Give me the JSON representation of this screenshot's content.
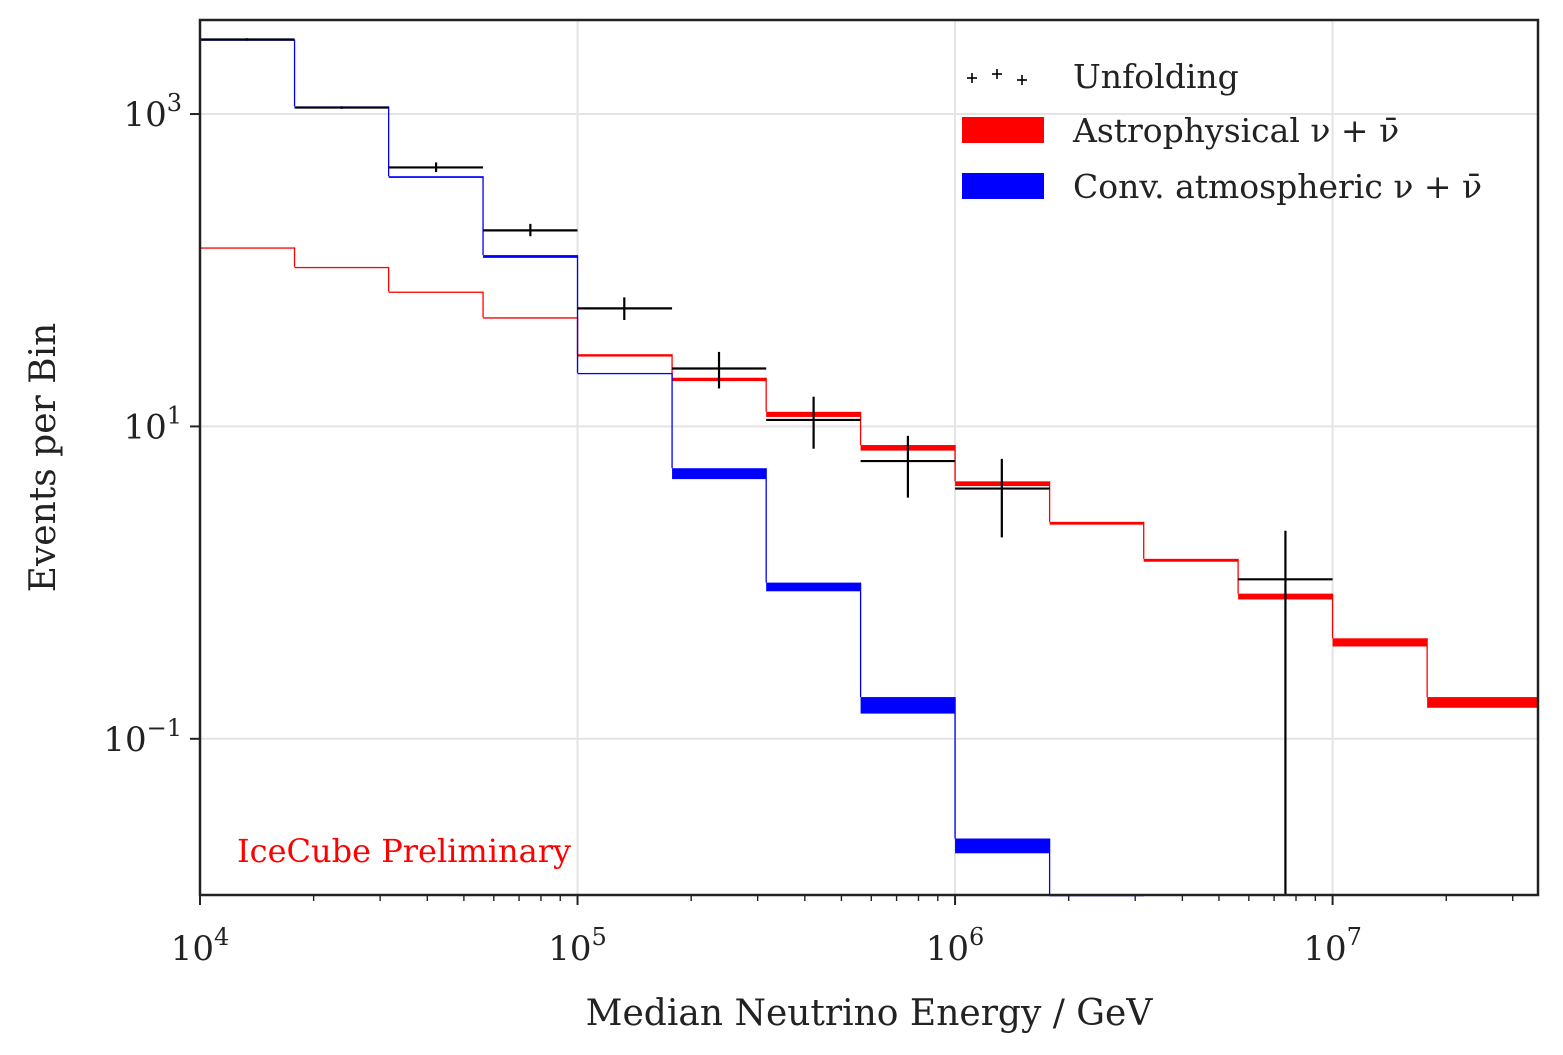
{
  "chart_data": {
    "type": "line",
    "title": "",
    "xlabel": "Median Neutrino Energy / GeV",
    "ylabel": "Events per Bin",
    "xscale": "log",
    "yscale": "log",
    "xlim": [
      10000,
      35000000
    ],
    "ylim": [
      0.01,
      4000
    ],
    "grid": true,
    "legend_position": "top-right",
    "annotation": "IceCube Preliminary",
    "x_ticks": [
      {
        "value": 10000,
        "base": "10",
        "exp": "4"
      },
      {
        "value": 100000,
        "base": "10",
        "exp": "5"
      },
      {
        "value": 1000000,
        "base": "10",
        "exp": "6"
      },
      {
        "value": 10000000,
        "base": "10",
        "exp": "7"
      }
    ],
    "y_ticks": [
      {
        "value": 1000,
        "base": "10",
        "exp": "3"
      },
      {
        "value": 10,
        "base": "10",
        "exp": "1"
      },
      {
        "value": 0.1,
        "base": "10",
        "exp": "−1"
      }
    ],
    "bin_edges": [
      10000,
      17800,
      31600,
      56200,
      100000,
      178000,
      316000,
      562000,
      1000000,
      1780000,
      3160000,
      5620000,
      10000000,
      17800000,
      35000000
    ],
    "series": [
      {
        "name": "Astrophysical ν + ν̄",
        "color": "#ff0000",
        "style": "band",
        "lower": [
          140,
          105,
          72,
          49,
          28,
          19.5,
          11.5,
          7.0,
          4.15,
          2.35,
          1.36,
          0.78,
          0.39,
          0.158
        ],
        "upper": [
          140,
          105,
          73,
          50,
          29,
          20.5,
          12.4,
          7.6,
          4.45,
          2.45,
          1.42,
          0.85,
          0.44,
          0.185
        ]
      },
      {
        "name": "Conv. atmospheric ν + ν̄",
        "color": "#0000ff",
        "style": "band",
        "lower": [
          3000,
          1100,
          390,
          120,
          22,
          4.6,
          0.88,
          0.145,
          0.0185,
          0.0
        ],
        "upper": [
          3000,
          1120,
          400,
          125,
          22,
          5.4,
          1.0,
          0.185,
          0.023,
          0.0
        ]
      },
      {
        "name": "Unfolding",
        "color": "#000000",
        "style": "errorbar",
        "points": [
          {
            "x": 13300,
            "y": 3000,
            "lo": 2950,
            "hi": 3060,
            "xlo": 10000,
            "xhi": 17800
          },
          {
            "x": 23700,
            "y": 1100,
            "lo": 1080,
            "hi": 1120,
            "xlo": 17800,
            "xhi": 31600
          },
          {
            "x": 42200,
            "y": 455,
            "lo": 425,
            "hi": 490,
            "xlo": 31600,
            "xhi": 56200
          },
          {
            "x": 75000,
            "y": 180,
            "lo": 165,
            "hi": 198,
            "xlo": 56200,
            "xhi": 100000
          },
          {
            "x": 133000,
            "y": 57,
            "lo": 48,
            "hi": 67,
            "xlo": 100000,
            "xhi": 178000
          },
          {
            "x": 237000,
            "y": 23.5,
            "lo": 17.5,
            "hi": 30,
            "xlo": 178000,
            "xhi": 316000
          },
          {
            "x": 422000,
            "y": 11,
            "lo": 7.2,
            "hi": 15.5,
            "xlo": 316000,
            "xhi": 562000
          },
          {
            "x": 750000,
            "y": 6.0,
            "lo": 3.5,
            "hi": 8.7,
            "xlo": 562000,
            "xhi": 1000000
          },
          {
            "x": 1330000,
            "y": 4.0,
            "lo": 1.95,
            "hi": 6.2,
            "xlo": 1000000,
            "xhi": 1780000
          },
          {
            "x": 7500000,
            "y": 1.05,
            "lo": 0.01,
            "hi": 2.15,
            "xlo": 5620000,
            "xhi": 10000000
          }
        ]
      }
    ]
  }
}
